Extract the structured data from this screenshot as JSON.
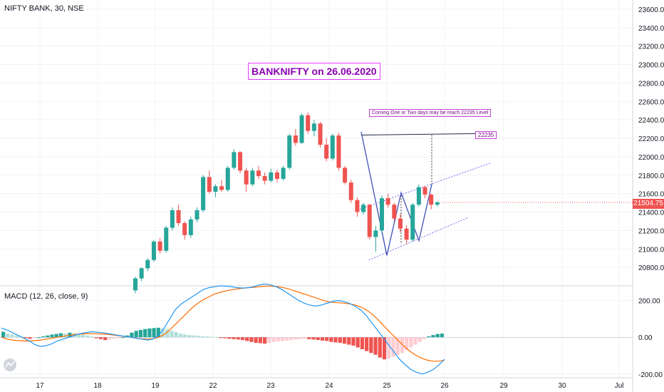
{
  "header": {
    "symbol": "NIFTY BANK, 30, NSE"
  },
  "annotations": {
    "title": "BANKNIFTY on 26.06.2020",
    "note": "Coming One or Two days may be reach 22235 Level",
    "level": "22235"
  },
  "price_tag": "21504.75",
  "macd_label": "MACD (12, 26, close, 9)",
  "colors": {
    "up": "#26a69a",
    "down": "#ef5350",
    "macd": "#2196f3",
    "signal": "#ff6d00",
    "pattern": "#3f51b5",
    "channel": "#7b68ee",
    "annotation": "#e040fb"
  },
  "chart_data": [
    {
      "type": "candlestick",
      "title": "NIFTY BANK, 30, NSE",
      "ylim": [
        20600,
        23700
      ],
      "yticks": [
        "23600.00",
        "23400.00",
        "23200.00",
        "23000.00",
        "22800.00",
        "22600.00",
        "22400.00",
        "22200.00",
        "22000.00",
        "21800.00",
        "21600.00",
        "21400.00",
        "21200.00",
        "21000.00",
        "20800.00"
      ],
      "xticks": [
        "17",
        "18",
        "19",
        "22",
        "23",
        "24",
        "25",
        "26",
        "29",
        "30",
        "Jul"
      ],
      "last_price": 21504.75,
      "resistance_level": 22235,
      "candles": [
        [
          20550,
          20700,
          20520,
          20680
        ],
        [
          20680,
          20800,
          20650,
          20790
        ],
        [
          20790,
          20900,
          20760,
          20880
        ],
        [
          20880,
          21100,
          20860,
          21080
        ],
        [
          21080,
          21120,
          20950,
          20980
        ],
        [
          20980,
          21250,
          20960,
          21230
        ],
        [
          21230,
          21450,
          21200,
          21420
        ],
        [
          21420,
          21480,
          21250,
          21280
        ],
        [
          21280,
          21300,
          21100,
          21150
        ],
        [
          21150,
          21350,
          21120,
          21320
        ],
        [
          21320,
          21450,
          21290,
          21420
        ],
        [
          21420,
          21800,
          21400,
          21780
        ],
        [
          21780,
          21850,
          21600,
          21620
        ],
        [
          21620,
          21700,
          21560,
          21680
        ],
        [
          21680,
          21750,
          21620,
          21640
        ],
        [
          21640,
          21900,
          21620,
          21880
        ],
        [
          21880,
          22080,
          21860,
          22050
        ],
        [
          22050,
          22060,
          21820,
          21850
        ],
        [
          21850,
          21880,
          21620,
          21700
        ],
        [
          21700,
          21880,
          21680,
          21850
        ],
        [
          21850,
          21900,
          21760,
          21790
        ],
        [
          21790,
          21830,
          21700,
          21740
        ],
        [
          21740,
          21870,
          21720,
          21830
        ],
        [
          21830,
          21860,
          21720,
          21760
        ],
        [
          21760,
          21900,
          21740,
          21880
        ],
        [
          21880,
          22250,
          21860,
          22230
        ],
        [
          22230,
          22300,
          22120,
          22150
        ],
        [
          22150,
          22470,
          22140,
          22450
        ],
        [
          22450,
          22480,
          22250,
          22280
        ],
        [
          22280,
          22400,
          22220,
          22360
        ],
        [
          22360,
          22380,
          22100,
          22130
        ],
        [
          22130,
          22200,
          21950,
          21980
        ],
        [
          21980,
          22250,
          21960,
          22230
        ],
        [
          22230,
          22260,
          21850,
          21880
        ],
        [
          21880,
          21900,
          21700,
          21720
        ],
        [
          21720,
          21750,
          21500,
          21530
        ],
        [
          21530,
          21560,
          21350,
          21400
        ],
        [
          21400,
          21500,
          21370,
          21480
        ],
        [
          21480,
          21490,
          21100,
          21130
        ],
        [
          21130,
          21250,
          20970,
          21200
        ],
        [
          21200,
          21580,
          21180,
          21550
        ],
        [
          21550,
          21600,
          21450,
          21480
        ],
        [
          21480,
          21500,
          21300,
          21330
        ],
        [
          21330,
          21380,
          21180,
          21220
        ],
        [
          21220,
          21260,
          21050,
          21100
        ],
        [
          21100,
          21500,
          21080,
          21480
        ],
        [
          21480,
          21700,
          21460,
          21670
        ],
        [
          21670,
          21680,
          21550,
          21590
        ],
        [
          21590,
          21600,
          21430,
          21480
        ],
        [
          21480,
          21520,
          21460,
          21505
        ]
      ]
    },
    {
      "type": "bar",
      "title": "MACD (12, 26, close, 9)",
      "ylim": [
        -220,
        280
      ],
      "yticks": [
        "200.00",
        "0.00",
        "-200.00"
      ],
      "histogram": [
        30,
        20,
        15,
        10,
        5,
        -5,
        -8,
        -5,
        0,
        5,
        10,
        15,
        18,
        22,
        20,
        25,
        22,
        18,
        15,
        10,
        5,
        -5,
        -10,
        -15,
        -12,
        -8,
        -5,
        0,
        10,
        25,
        35,
        40,
        45,
        48,
        50,
        52,
        48,
        42,
        35,
        28,
        20,
        15,
        12,
        10,
        8,
        6,
        5,
        3,
        2,
        -2,
        -5,
        -8,
        -10,
        -12,
        -15,
        -20,
        -25,
        -30,
        -32,
        -35,
        -30,
        -25,
        -22,
        -20,
        -18,
        -15,
        -12,
        -10,
        -8,
        -10,
        -12,
        -15,
        -18,
        -20,
        -25,
        -28,
        -30,
        -35,
        -40,
        -45,
        -55,
        -65,
        -75,
        -85,
        -95,
        -110,
        -120,
        -115,
        -105,
        -95,
        -85,
        -70,
        -55,
        -40,
        -25,
        -10,
        5,
        12,
        18,
        20
      ],
      "macd": [
        50,
        40,
        25,
        10,
        -5,
        -20,
        -40,
        -50,
        -45,
        -35,
        -20,
        -10,
        0,
        10,
        20,
        25,
        30,
        28,
        25,
        20,
        15,
        10,
        5,
        0,
        -5,
        -10,
        -15,
        -10,
        10,
        50,
        100,
        150,
        180,
        200,
        220,
        240,
        260,
        270,
        275,
        280,
        278,
        275,
        270,
        268,
        270,
        275,
        285,
        290,
        285,
        275,
        260,
        240,
        220,
        200,
        185,
        175,
        170,
        175,
        185,
        195,
        200,
        195,
        185,
        170,
        150,
        120,
        80,
        40,
        0,
        -40,
        -80,
        -120,
        -150,
        -175,
        -190,
        -200,
        -190,
        -175,
        -150,
        -120
      ],
      "signal": [
        0,
        -10,
        -15,
        -18,
        -20,
        -20,
        -18,
        -15,
        -10,
        -5,
        0,
        5,
        10,
        15,
        18,
        20,
        20,
        19,
        18,
        16,
        12,
        8,
        4,
        0,
        -4,
        -8,
        -10,
        -8,
        0,
        15,
        40,
        70,
        100,
        130,
        160,
        185,
        205,
        220,
        235,
        245,
        252,
        258,
        263,
        267,
        270,
        272,
        275,
        278,
        278,
        276,
        272,
        265,
        255,
        245,
        235,
        225,
        215,
        205,
        195,
        190,
        188,
        186,
        182,
        176,
        166,
        150,
        128,
        100,
        68,
        35,
        5,
        -25,
        -55,
        -80,
        -100,
        -115,
        -125,
        -130,
        -130,
        -125
      ]
    }
  ]
}
